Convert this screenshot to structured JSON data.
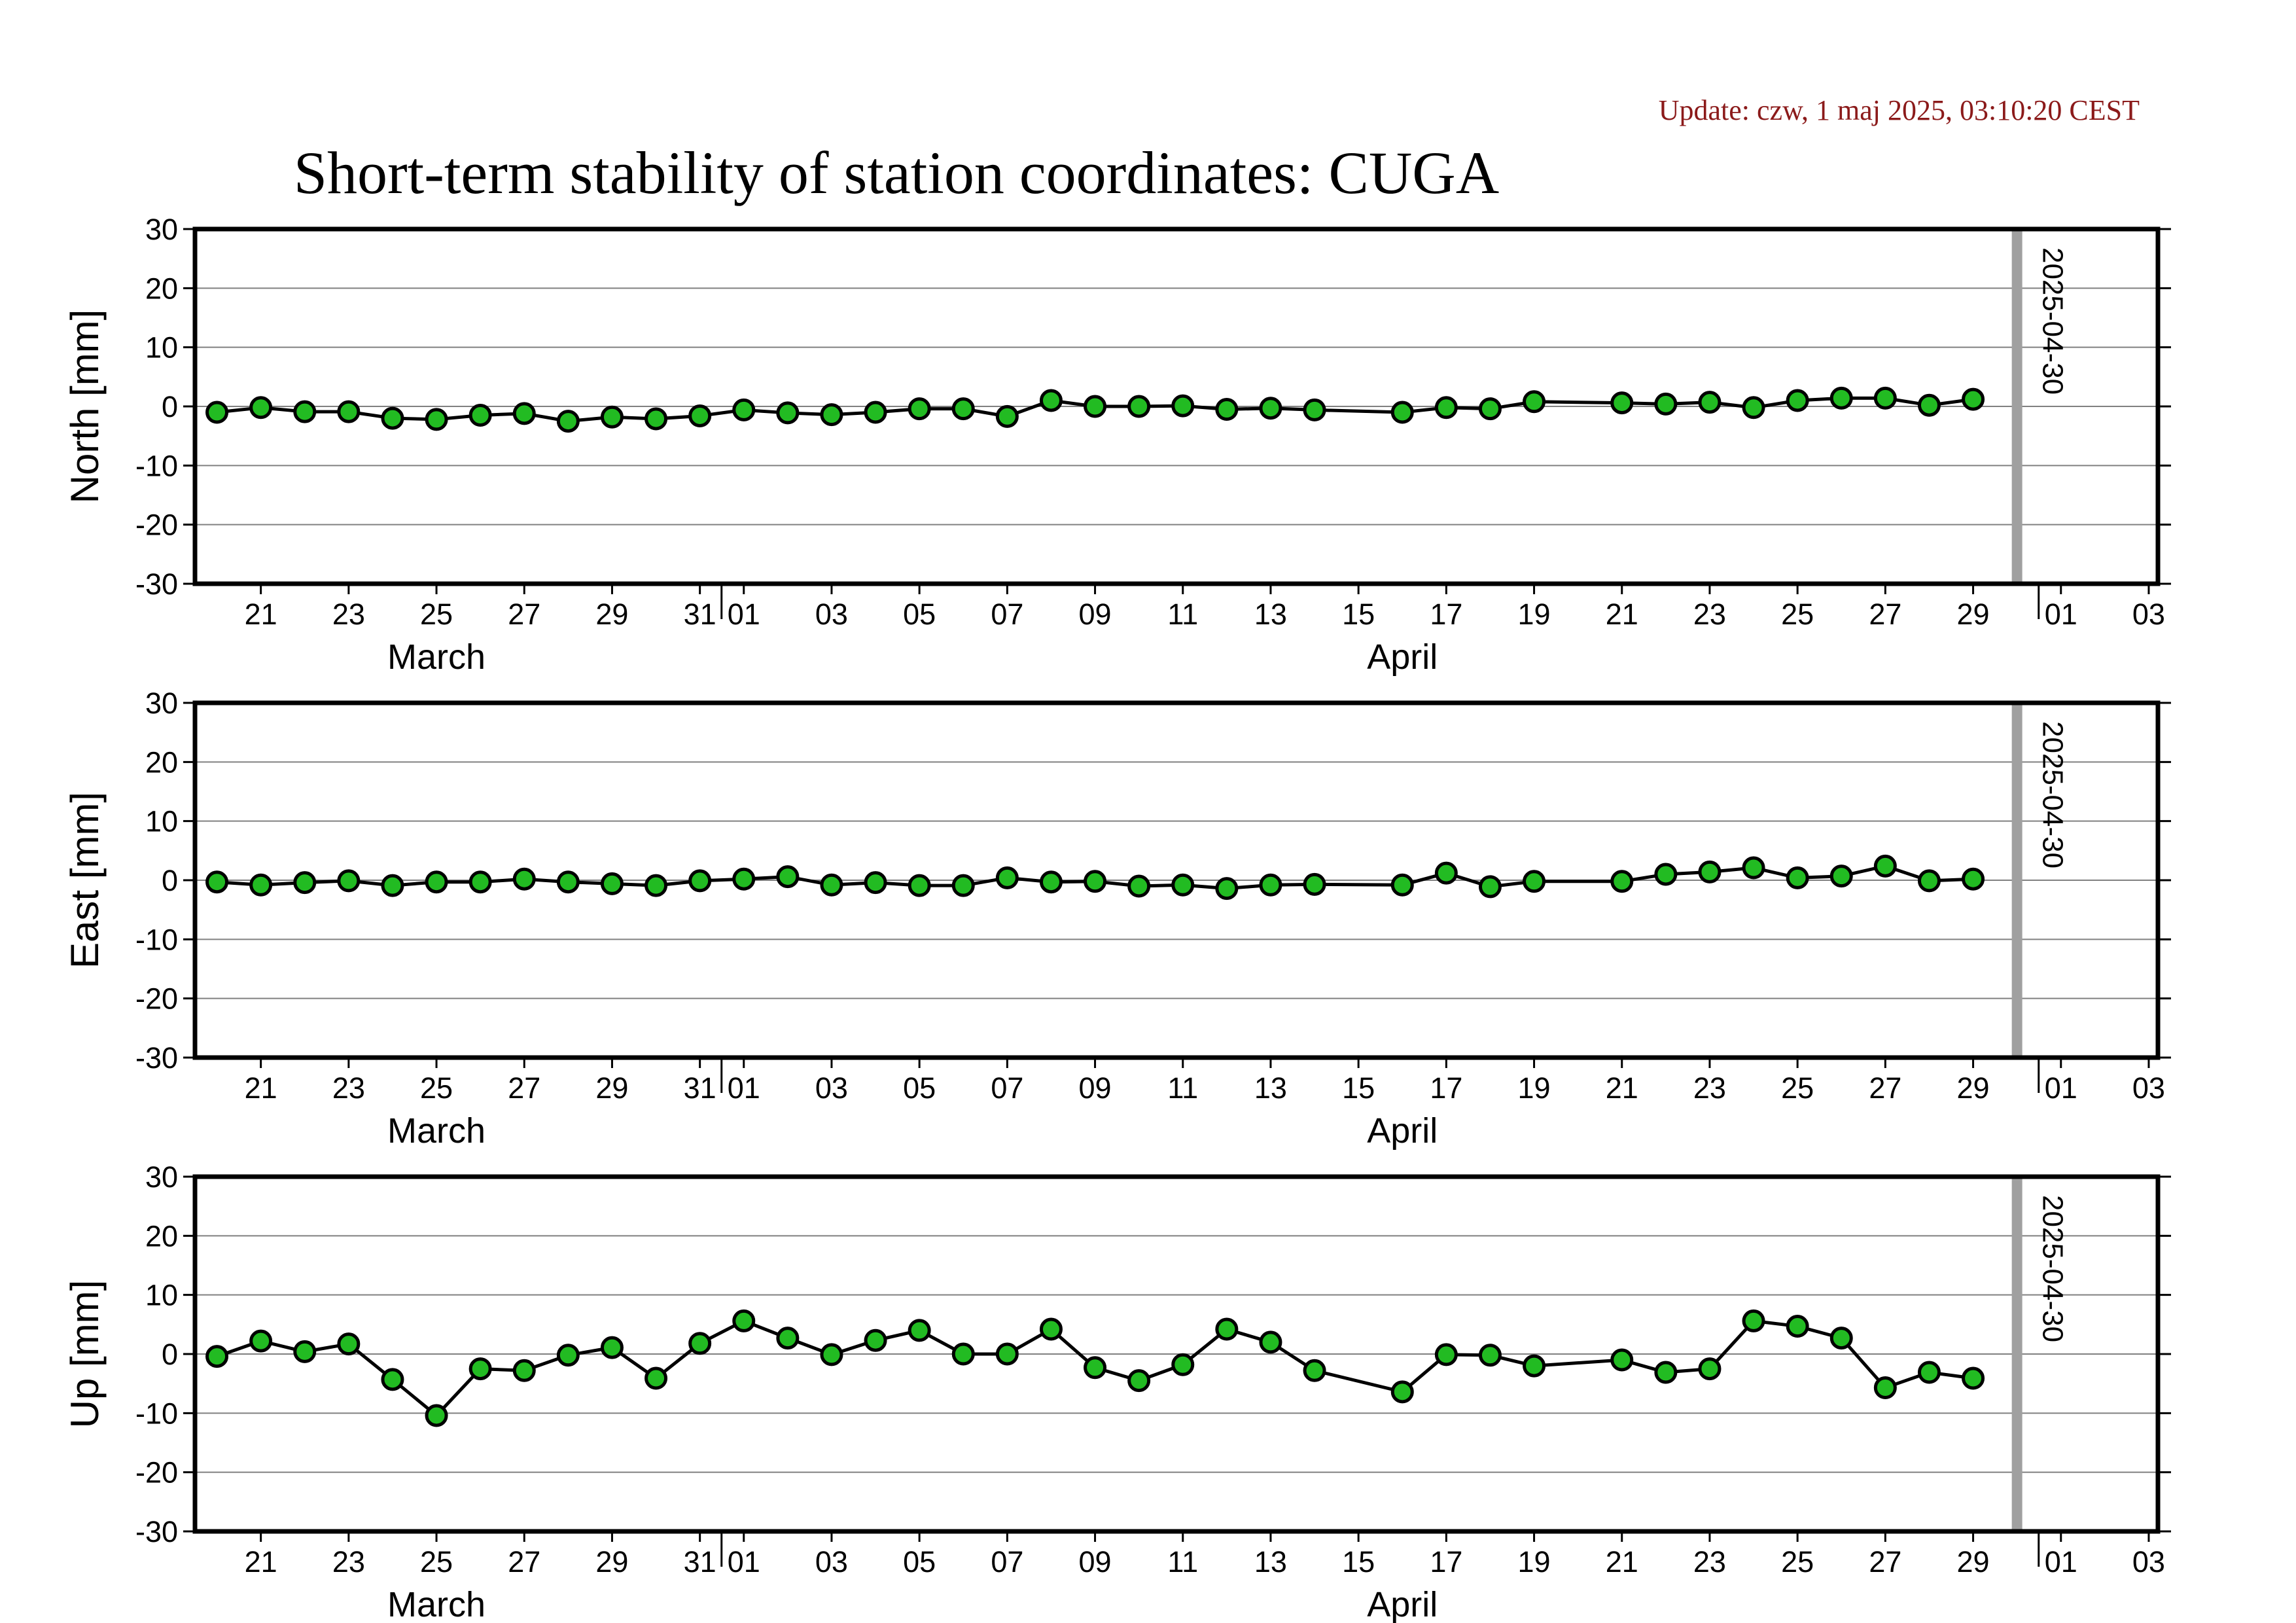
{
  "update_text": "Update: czw, 1 maj 2025, 03:10:20 CEST",
  "title": "Short-term stability of station coordinates: CUGA",
  "colors": {
    "marker_fill": "#22bb22",
    "marker_stroke": "#000000",
    "grid": "#808080",
    "vline": "#a0a0a0",
    "update": "#8b1a1a"
  },
  "chart_data": [
    {
      "type": "line",
      "ylabel": "North [mm]",
      "ylim": [
        -30,
        30
      ],
      "yticks": [
        30,
        20,
        10,
        0,
        -10,
        -20,
        -30
      ],
      "x_tick_labels": [
        "21",
        "23",
        "25",
        "27",
        "29",
        "31",
        "01",
        "03",
        "05",
        "07",
        "09",
        "11",
        "13",
        "15",
        "17",
        "19",
        "21",
        "23",
        "25",
        "27",
        "29",
        "01",
        "03"
      ],
      "month_labels": [
        "March",
        "April"
      ],
      "vline_label": "2025-04-30",
      "grid": true,
      "points": [
        {
          "x": "2025-03-20",
          "y": -1.0
        },
        {
          "x": "2025-03-21",
          "y": -0.2
        },
        {
          "x": "2025-03-22",
          "y": -0.9
        },
        {
          "x": "2025-03-23",
          "y": -0.9
        },
        {
          "x": "2025-03-24",
          "y": -2.0
        },
        {
          "x": "2025-03-25",
          "y": -2.2
        },
        {
          "x": "2025-03-26",
          "y": -1.5
        },
        {
          "x": "2025-03-27",
          "y": -1.2
        },
        {
          "x": "2025-03-28",
          "y": -2.5
        },
        {
          "x": "2025-03-29",
          "y": -1.8
        },
        {
          "x": "2025-03-30",
          "y": -2.1
        },
        {
          "x": "2025-03-31",
          "y": -1.6
        },
        {
          "x": "2025-04-01",
          "y": -0.6
        },
        {
          "x": "2025-04-02",
          "y": -1.1
        },
        {
          "x": "2025-04-03",
          "y": -1.4
        },
        {
          "x": "2025-04-04",
          "y": -1.0
        },
        {
          "x": "2025-04-05",
          "y": -0.4
        },
        {
          "x": "2025-04-06",
          "y": -0.4
        },
        {
          "x": "2025-04-07",
          "y": -1.7
        },
        {
          "x": "2025-04-08",
          "y": 1.0
        },
        {
          "x": "2025-04-09",
          "y": 0.0
        },
        {
          "x": "2025-04-10",
          "y": 0.0
        },
        {
          "x": "2025-04-11",
          "y": 0.1
        },
        {
          "x": "2025-04-12",
          "y": -0.5
        },
        {
          "x": "2025-04-13",
          "y": -0.3
        },
        {
          "x": "2025-04-14",
          "y": -0.6
        },
        {
          "x": "2025-04-16",
          "y": -1.0
        },
        {
          "x": "2025-04-17",
          "y": -0.2
        },
        {
          "x": "2025-04-18",
          "y": -0.4
        },
        {
          "x": "2025-04-19",
          "y": 0.8
        },
        {
          "x": "2025-04-21",
          "y": 0.6
        },
        {
          "x": "2025-04-22",
          "y": 0.4
        },
        {
          "x": "2025-04-23",
          "y": 0.7
        },
        {
          "x": "2025-04-24",
          "y": -0.2
        },
        {
          "x": "2025-04-25",
          "y": 1.0
        },
        {
          "x": "2025-04-26",
          "y": 1.4
        },
        {
          "x": "2025-04-27",
          "y": 1.4
        },
        {
          "x": "2025-04-28",
          "y": 0.2
        },
        {
          "x": "2025-04-29",
          "y": 1.2
        }
      ]
    },
    {
      "type": "line",
      "ylabel": "East [mm]",
      "ylim": [
        -30,
        30
      ],
      "yticks": [
        30,
        20,
        10,
        0,
        -10,
        -20,
        -30
      ],
      "x_tick_labels": [
        "21",
        "23",
        "25",
        "27",
        "29",
        "31",
        "01",
        "03",
        "05",
        "07",
        "09",
        "11",
        "13",
        "15",
        "17",
        "19",
        "21",
        "23",
        "25",
        "27",
        "29",
        "01",
        "03"
      ],
      "month_labels": [
        "March",
        "April"
      ],
      "vline_label": "2025-04-30",
      "grid": true,
      "points": [
        {
          "x": "2025-03-20",
          "y": -0.3
        },
        {
          "x": "2025-03-21",
          "y": -0.8
        },
        {
          "x": "2025-03-22",
          "y": -0.4
        },
        {
          "x": "2025-03-23",
          "y": -0.1
        },
        {
          "x": "2025-03-24",
          "y": -0.9
        },
        {
          "x": "2025-03-25",
          "y": -0.3
        },
        {
          "x": "2025-03-26",
          "y": -0.3
        },
        {
          "x": "2025-03-27",
          "y": 0.2
        },
        {
          "x": "2025-03-28",
          "y": -0.3
        },
        {
          "x": "2025-03-29",
          "y": -0.6
        },
        {
          "x": "2025-03-30",
          "y": -0.9
        },
        {
          "x": "2025-03-31",
          "y": -0.1
        },
        {
          "x": "2025-04-01",
          "y": 0.2
        },
        {
          "x": "2025-04-02",
          "y": 0.6
        },
        {
          "x": "2025-04-03",
          "y": -0.8
        },
        {
          "x": "2025-04-04",
          "y": -0.4
        },
        {
          "x": "2025-04-05",
          "y": -0.9
        },
        {
          "x": "2025-04-06",
          "y": -0.9
        },
        {
          "x": "2025-04-07",
          "y": 0.4
        },
        {
          "x": "2025-04-08",
          "y": -0.3
        },
        {
          "x": "2025-04-09",
          "y": -0.2
        },
        {
          "x": "2025-04-10",
          "y": -1.0
        },
        {
          "x": "2025-04-11",
          "y": -0.8
        },
        {
          "x": "2025-04-12",
          "y": -1.4
        },
        {
          "x": "2025-04-13",
          "y": -0.8
        },
        {
          "x": "2025-04-14",
          "y": -0.7
        },
        {
          "x": "2025-04-16",
          "y": -0.8
        },
        {
          "x": "2025-04-17",
          "y": 1.2
        },
        {
          "x": "2025-04-18",
          "y": -1.1
        },
        {
          "x": "2025-04-19",
          "y": -0.2
        },
        {
          "x": "2025-04-21",
          "y": -0.2
        },
        {
          "x": "2025-04-22",
          "y": 1.0
        },
        {
          "x": "2025-04-23",
          "y": 1.4
        },
        {
          "x": "2025-04-24",
          "y": 2.1
        },
        {
          "x": "2025-04-25",
          "y": 0.4
        },
        {
          "x": "2025-04-26",
          "y": 0.7
        },
        {
          "x": "2025-04-27",
          "y": 2.4
        },
        {
          "x": "2025-04-28",
          "y": -0.1
        },
        {
          "x": "2025-04-29",
          "y": 0.2
        }
      ]
    },
    {
      "type": "line",
      "ylabel": "Up [mm]",
      "ylim": [
        -30,
        30
      ],
      "yticks": [
        30,
        20,
        10,
        0,
        -10,
        -20,
        -30
      ],
      "x_tick_labels": [
        "21",
        "23",
        "25",
        "27",
        "29",
        "31",
        "01",
        "03",
        "05",
        "07",
        "09",
        "11",
        "13",
        "15",
        "17",
        "19",
        "21",
        "23",
        "25",
        "27",
        "29",
        "01",
        "03"
      ],
      "month_labels": [
        "March",
        "April"
      ],
      "vline_label": "2025-04-30",
      "grid": true,
      "points": [
        {
          "x": "2025-03-20",
          "y": -0.4
        },
        {
          "x": "2025-03-21",
          "y": 2.2
        },
        {
          "x": "2025-03-22",
          "y": 0.4
        },
        {
          "x": "2025-03-23",
          "y": 1.7
        },
        {
          "x": "2025-03-24",
          "y": -4.3
        },
        {
          "x": "2025-03-25",
          "y": -10.4
        },
        {
          "x": "2025-03-26",
          "y": -2.5
        },
        {
          "x": "2025-03-27",
          "y": -2.8
        },
        {
          "x": "2025-03-28",
          "y": -0.2
        },
        {
          "x": "2025-03-29",
          "y": 1.1
        },
        {
          "x": "2025-03-30",
          "y": -4.1
        },
        {
          "x": "2025-03-31",
          "y": 1.8
        },
        {
          "x": "2025-04-01",
          "y": 5.6
        },
        {
          "x": "2025-04-02",
          "y": 2.7
        },
        {
          "x": "2025-04-03",
          "y": -0.1
        },
        {
          "x": "2025-04-04",
          "y": 2.3
        },
        {
          "x": "2025-04-05",
          "y": 4.0
        },
        {
          "x": "2025-04-06",
          "y": 0.0
        },
        {
          "x": "2025-04-07",
          "y": 0.0
        },
        {
          "x": "2025-04-08",
          "y": 4.2
        },
        {
          "x": "2025-04-09",
          "y": -2.3
        },
        {
          "x": "2025-04-10",
          "y": -4.5
        },
        {
          "x": "2025-04-11",
          "y": -1.8
        },
        {
          "x": "2025-04-12",
          "y": 4.2
        },
        {
          "x": "2025-04-13",
          "y": 2.0
        },
        {
          "x": "2025-04-14",
          "y": -2.8
        },
        {
          "x": "2025-04-16",
          "y": -6.4
        },
        {
          "x": "2025-04-17",
          "y": -0.1
        },
        {
          "x": "2025-04-18",
          "y": -0.2
        },
        {
          "x": "2025-04-19",
          "y": -2.0
        },
        {
          "x": "2025-04-21",
          "y": -1.0
        },
        {
          "x": "2025-04-22",
          "y": -3.1
        },
        {
          "x": "2025-04-23",
          "y": -2.5
        },
        {
          "x": "2025-04-24",
          "y": 5.6
        },
        {
          "x": "2025-04-25",
          "y": 4.7
        },
        {
          "x": "2025-04-26",
          "y": 2.7
        },
        {
          "x": "2025-04-27",
          "y": -5.7
        },
        {
          "x": "2025-04-28",
          "y": -3.1
        },
        {
          "x": "2025-04-29",
          "y": -4.1
        }
      ]
    }
  ]
}
